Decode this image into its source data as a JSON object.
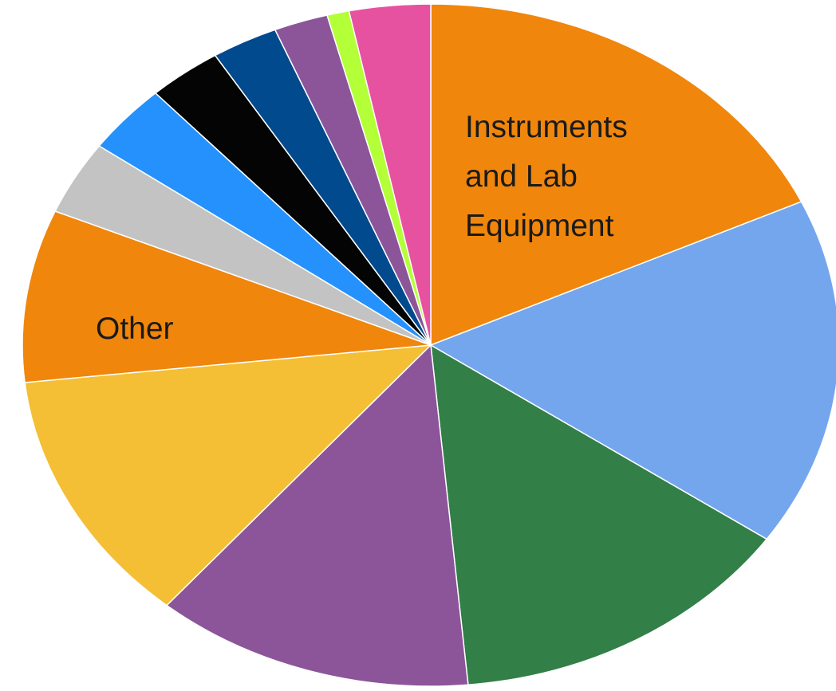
{
  "chart_data": {
    "type": "pie",
    "start_angle_deg": 90,
    "direction": "clockwise",
    "slices": [
      {
        "label": "Instruments and Lab Equipment",
        "value": 18.6,
        "color": "#F0860C",
        "label_lines": [
          "Instruments",
          "and Lab",
          "Equipment"
        ]
      },
      {
        "label": "",
        "value": 17.0,
        "color": "#74A6EE"
      },
      {
        "label": "",
        "value": 14.3,
        "color": "#327F48"
      },
      {
        "label": "",
        "value": 13.0,
        "color": "#8C5599"
      },
      {
        "label": "",
        "value": 12.4,
        "color": "#F4BF34"
      },
      {
        "label": "Other",
        "value": 8.4,
        "color": "#F0860C",
        "label_lines": [
          "Other"
        ]
      },
      {
        "label": "",
        "value": 3.6,
        "color": "#C3C3C3"
      },
      {
        "label": "",
        "value": 3.4,
        "color": "#2591FC"
      },
      {
        "label": "",
        "value": 3.0,
        "color": "#040404"
      },
      {
        "label": "",
        "value": 2.7,
        "color": "#024A8E"
      },
      {
        "label": "",
        "value": 2.2,
        "color": "#8C5599"
      },
      {
        "label": "",
        "value": 0.9,
        "color": "#B3FF38"
      },
      {
        "label": "",
        "value": 3.3,
        "color": "#E752A0"
      }
    ]
  }
}
